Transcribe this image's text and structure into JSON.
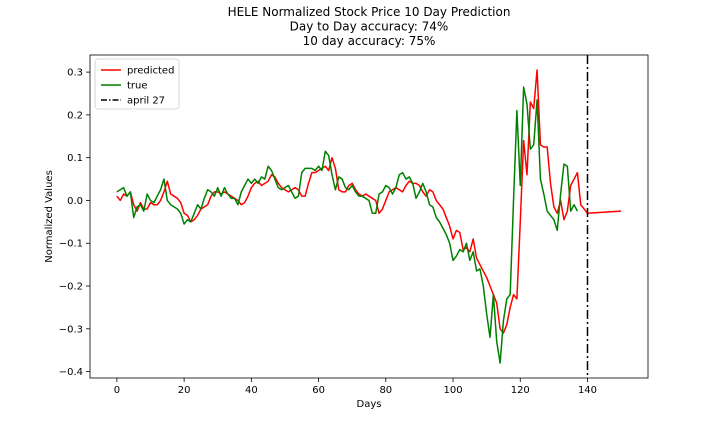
{
  "chart_data": {
    "type": "line",
    "title_lines": [
      "HELE Normalized Stock Price 10 Day Prediction",
      "Day to Day accuracy: 74%",
      "10 day accuracy: 75%"
    ],
    "xlabel": "Days",
    "ylabel": "Normalized Values",
    "xlim": [
      -8,
      158
    ],
    "ylim": [
      -0.415,
      0.34
    ],
    "x_ticks": [
      0,
      20,
      40,
      60,
      80,
      100,
      120,
      140
    ],
    "y_ticks": [
      -0.4,
      -0.3,
      -0.2,
      -0.1,
      0.0,
      0.1,
      0.2,
      0.3
    ],
    "y_tick_labels": [
      "−0.4",
      "−0.3",
      "−0.2",
      "−0.1",
      "0.0",
      "0.1",
      "0.2",
      "0.3"
    ],
    "legend_position": "top-left",
    "series": [
      {
        "name": "predicted",
        "color": "#ff0000",
        "points": [
          [
            0,
            0.01
          ],
          [
            1,
            0.0
          ],
          [
            2,
            0.015
          ],
          [
            3,
            0.01
          ],
          [
            4,
            0.02
          ],
          [
            5,
            -0.01
          ],
          [
            6,
            -0.025
          ],
          [
            7,
            -0.005
          ],
          [
            8,
            -0.02
          ],
          [
            9,
            -0.02
          ],
          [
            10,
            -0.005
          ],
          [
            11,
            -0.01
          ],
          [
            12,
            -0.01
          ],
          [
            13,
            0.0
          ],
          [
            14,
            0.02
          ],
          [
            15,
            0.045
          ],
          [
            16,
            0.015
          ],
          [
            17,
            0.01
          ],
          [
            18,
            0.005
          ],
          [
            19,
            -0.005
          ],
          [
            20,
            -0.03
          ],
          [
            21,
            -0.035
          ],
          [
            22,
            -0.05
          ],
          [
            23,
            -0.045
          ],
          [
            24,
            -0.035
          ],
          [
            25,
            -0.02
          ],
          [
            26,
            -0.015
          ],
          [
            27,
            -0.01
          ],
          [
            28,
            0.01
          ],
          [
            29,
            0.02
          ],
          [
            30,
            0.02
          ],
          [
            31,
            0.015
          ],
          [
            32,
            0.02
          ],
          [
            33,
            0.015
          ],
          [
            34,
            0.01
          ],
          [
            35,
            0.005
          ],
          [
            36,
            0.0
          ],
          [
            37,
            -0.01
          ],
          [
            38,
            -0.005
          ],
          [
            39,
            0.01
          ],
          [
            40,
            0.03
          ],
          [
            41,
            0.04
          ],
          [
            42,
            0.045
          ],
          [
            43,
            0.035
          ],
          [
            44,
            0.04
          ],
          [
            45,
            0.045
          ],
          [
            46,
            0.06
          ],
          [
            47,
            0.055
          ],
          [
            48,
            0.04
          ],
          [
            49,
            0.03
          ],
          [
            50,
            0.025
          ],
          [
            51,
            0.02
          ],
          [
            52,
            0.025
          ],
          [
            53,
            0.03
          ],
          [
            54,
            0.025
          ],
          [
            55,
            0.01
          ],
          [
            56,
            0.01
          ],
          [
            57,
            0.04
          ],
          [
            58,
            0.065
          ],
          [
            59,
            0.065
          ],
          [
            60,
            0.07
          ],
          [
            61,
            0.075
          ],
          [
            62,
            0.08
          ],
          [
            63,
            0.07
          ],
          [
            64,
            0.1
          ],
          [
            65,
            0.075
          ],
          [
            66,
            0.025
          ],
          [
            67,
            0.02
          ],
          [
            68,
            0.02
          ],
          [
            69,
            0.035
          ],
          [
            70,
            0.04
          ],
          [
            71,
            0.025
          ],
          [
            72,
            0.015
          ],
          [
            73,
            0.01
          ],
          [
            74,
            0.015
          ],
          [
            75,
            0.01
          ],
          [
            76,
            0.005
          ],
          [
            77,
            0.0
          ],
          [
            78,
            -0.03
          ],
          [
            79,
            -0.02
          ],
          [
            80,
            0.0
          ],
          [
            81,
            0.02
          ],
          [
            82,
            0.025
          ],
          [
            83,
            0.03
          ],
          [
            84,
            0.025
          ],
          [
            85,
            0.02
          ],
          [
            86,
            0.035
          ],
          [
            87,
            0.045
          ],
          [
            88,
            0.04
          ],
          [
            89,
            0.04
          ],
          [
            90,
            0.035
          ],
          [
            91,
            0.02
          ],
          [
            92,
            0.01
          ],
          [
            93,
            0.025
          ],
          [
            94,
            0.02
          ],
          [
            95,
            0.0
          ],
          [
            96,
            -0.01
          ],
          [
            97,
            -0.02
          ],
          [
            98,
            -0.04
          ],
          [
            99,
            -0.06
          ],
          [
            100,
            -0.09
          ],
          [
            101,
            -0.07
          ],
          [
            102,
            -0.075
          ],
          [
            103,
            -0.115
          ],
          [
            104,
            -0.11
          ],
          [
            105,
            -0.12
          ],
          [
            106,
            -0.09
          ],
          [
            107,
            -0.135
          ],
          [
            108,
            -0.15
          ],
          [
            109,
            -0.165
          ],
          [
            110,
            -0.18
          ],
          [
            111,
            -0.2
          ],
          [
            112,
            -0.22
          ],
          [
            113,
            -0.24
          ],
          [
            114,
            -0.3
          ],
          [
            115,
            -0.31
          ],
          [
            116,
            -0.29
          ],
          [
            117,
            -0.25
          ],
          [
            118,
            -0.22
          ],
          [
            119,
            -0.23
          ],
          [
            120,
            -0.05
          ],
          [
            121,
            0.14
          ],
          [
            122,
            0.06
          ],
          [
            123,
            0.23
          ],
          [
            124,
            0.215
          ],
          [
            125,
            0.305
          ],
          [
            126,
            0.13
          ],
          [
            127,
            0.125
          ],
          [
            128,
            0.125
          ],
          [
            129,
            0.04
          ],
          [
            130,
            -0.015
          ],
          [
            131,
            -0.03
          ],
          [
            132,
            0.0
          ],
          [
            133,
            -0.045
          ],
          [
            134,
            -0.025
          ],
          [
            135,
            0.035
          ],
          [
            136,
            0.05
          ],
          [
            137,
            0.065
          ],
          [
            138,
            -0.01
          ],
          [
            139,
            -0.02
          ],
          [
            140,
            -0.03
          ],
          [
            150,
            -0.025
          ]
        ]
      },
      {
        "name": "true",
        "color": "#008000",
        "points": [
          [
            0,
            0.02
          ],
          [
            1,
            0.025
          ],
          [
            2,
            0.03
          ],
          [
            3,
            0.01
          ],
          [
            4,
            0.02
          ],
          [
            5,
            -0.04
          ],
          [
            6,
            -0.015
          ],
          [
            7,
            -0.01
          ],
          [
            8,
            -0.025
          ],
          [
            9,
            0.015
          ],
          [
            10,
            0.0
          ],
          [
            11,
            -0.005
          ],
          [
            12,
            0.01
          ],
          [
            13,
            0.025
          ],
          [
            14,
            0.05
          ],
          [
            15,
            0.0
          ],
          [
            16,
            -0.01
          ],
          [
            17,
            -0.015
          ],
          [
            18,
            -0.02
          ],
          [
            19,
            -0.03
          ],
          [
            20,
            -0.055
          ],
          [
            21,
            -0.045
          ],
          [
            22,
            -0.05
          ],
          [
            23,
            -0.03
          ],
          [
            24,
            -0.01
          ],
          [
            25,
            -0.02
          ],
          [
            26,
            0.005
          ],
          [
            27,
            0.025
          ],
          [
            28,
            0.02
          ],
          [
            29,
            0.01
          ],
          [
            30,
            0.03
          ],
          [
            31,
            0.01
          ],
          [
            32,
            0.03
          ],
          [
            33,
            0.015
          ],
          [
            34,
            0.005
          ],
          [
            35,
            0.005
          ],
          [
            36,
            -0.01
          ],
          [
            37,
            0.02
          ],
          [
            38,
            0.035
          ],
          [
            39,
            0.05
          ],
          [
            40,
            0.04
          ],
          [
            41,
            0.05
          ],
          [
            42,
            0.04
          ],
          [
            43,
            0.055
          ],
          [
            44,
            0.05
          ],
          [
            45,
            0.08
          ],
          [
            46,
            0.07
          ],
          [
            47,
            0.05
          ],
          [
            48,
            0.03
          ],
          [
            49,
            0.025
          ],
          [
            50,
            0.03
          ],
          [
            51,
            0.035
          ],
          [
            52,
            0.02
          ],
          [
            53,
            0.005
          ],
          [
            54,
            0.01
          ],
          [
            55,
            0.065
          ],
          [
            56,
            0.075
          ],
          [
            57,
            0.075
          ],
          [
            58,
            0.075
          ],
          [
            59,
            0.07
          ],
          [
            60,
            0.08
          ],
          [
            61,
            0.07
          ],
          [
            62,
            0.115
          ],
          [
            63,
            0.105
          ],
          [
            64,
            0.06
          ],
          [
            65,
            0.025
          ],
          [
            66,
            0.055
          ],
          [
            67,
            0.05
          ],
          [
            68,
            0.03
          ],
          [
            69,
            0.025
          ],
          [
            70,
            0.035
          ],
          [
            71,
            0.02
          ],
          [
            72,
            0.01
          ],
          [
            73,
            0.01
          ],
          [
            74,
            0.005
          ],
          [
            75,
            0.0
          ],
          [
            76,
            -0.03
          ],
          [
            77,
            -0.03
          ],
          [
            78,
            0.015
          ],
          [
            79,
            0.02
          ],
          [
            80,
            0.035
          ],
          [
            81,
            0.03
          ],
          [
            82,
            0.015
          ],
          [
            83,
            0.03
          ],
          [
            84,
            0.06
          ],
          [
            85,
            0.065
          ],
          [
            86,
            0.05
          ],
          [
            87,
            0.055
          ],
          [
            88,
            0.04
          ],
          [
            89,
            0.005
          ],
          [
            90,
            0.02
          ],
          [
            91,
            0.04
          ],
          [
            92,
            0.02
          ],
          [
            93,
            -0.01
          ],
          [
            94,
            -0.015
          ],
          [
            95,
            -0.04
          ],
          [
            96,
            -0.05
          ],
          [
            97,
            -0.065
          ],
          [
            98,
            -0.08
          ],
          [
            99,
            -0.1
          ],
          [
            100,
            -0.14
          ],
          [
            101,
            -0.13
          ],
          [
            102,
            -0.115
          ],
          [
            103,
            -0.12
          ],
          [
            104,
            -0.1
          ],
          [
            105,
            -0.14
          ],
          [
            106,
            -0.12
          ],
          [
            107,
            -0.165
          ],
          [
            108,
            -0.16
          ],
          [
            109,
            -0.2
          ],
          [
            110,
            -0.265
          ],
          [
            111,
            -0.32
          ],
          [
            112,
            -0.22
          ],
          [
            113,
            -0.33
          ],
          [
            114,
            -0.38
          ],
          [
            115,
            -0.28
          ],
          [
            116,
            -0.23
          ],
          [
            117,
            -0.22
          ],
          [
            118,
            0.0
          ],
          [
            119,
            0.21
          ],
          [
            120,
            0.035
          ],
          [
            121,
            0.265
          ],
          [
            122,
            0.225
          ],
          [
            123,
            0.12
          ],
          [
            124,
            0.13
          ],
          [
            125,
            0.235
          ],
          [
            126,
            0.05
          ],
          [
            127,
            0.015
          ],
          [
            128,
            -0.025
          ],
          [
            129,
            -0.035
          ],
          [
            130,
            -0.045
          ],
          [
            131,
            -0.07
          ],
          [
            132,
            0.015
          ],
          [
            133,
            0.085
          ],
          [
            134,
            0.08
          ],
          [
            135,
            -0.025
          ],
          [
            136,
            -0.01
          ],
          [
            137,
            -0.025
          ]
        ]
      }
    ],
    "vline": {
      "name": "april 27",
      "x": 140,
      "color": "#000000",
      "style": "dash-dot"
    }
  }
}
